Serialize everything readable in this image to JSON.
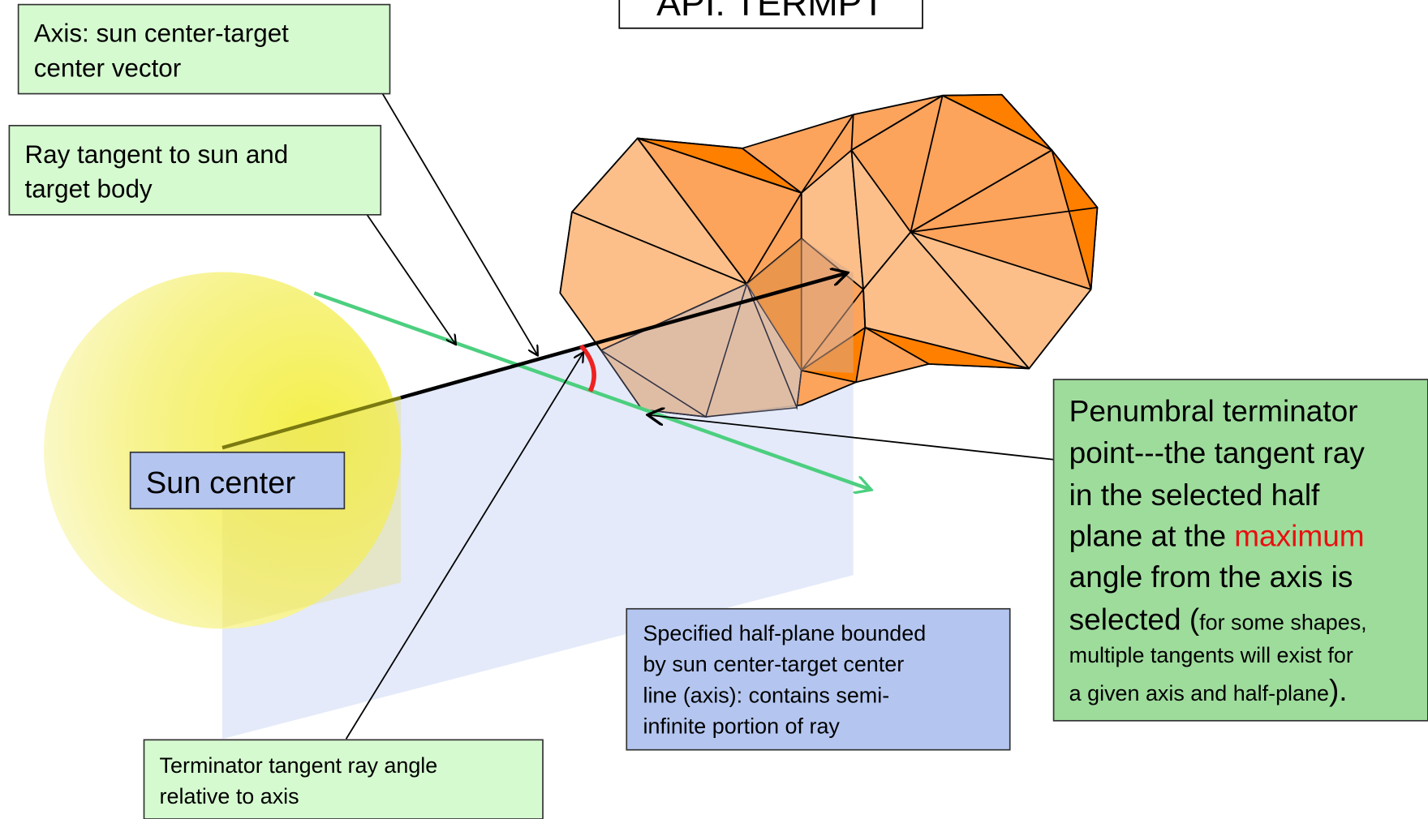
{
  "title": "API: TERMPT",
  "labels": {
    "axis": [
      "Axis: sun center-target",
      "center vector"
    ],
    "ray": [
      "Ray tangent to sun and",
      "target body"
    ],
    "sun_center": "Sun center",
    "half_plane": [
      "Specified half-plane bounded",
      "by sun center-target center",
      "line (axis): contains semi-",
      "infinite portion of ray"
    ],
    "angle": [
      "Terminator tangent ray angle",
      "relative to axis"
    ],
    "penumbral": [
      [
        "Penumbral terminator"
      ],
      [
        "point---the tangent ray"
      ],
      [
        "in the selected half"
      ],
      [
        "plane at the",
        "maximum"
      ],
      [
        "angle from the axis is"
      ],
      [
        "selected (",
        "for some shapes,"
      ],
      [
        "multiple tangents will exist for"
      ],
      [
        "a given axis and half-plane",
        ")."
      ]
    ]
  }
}
